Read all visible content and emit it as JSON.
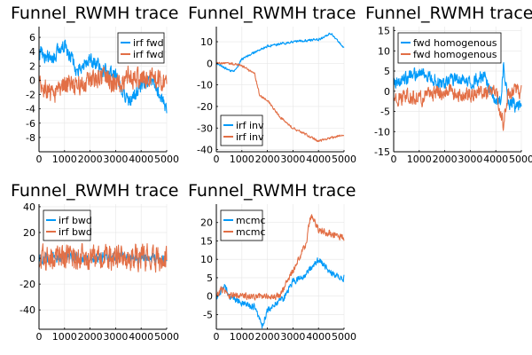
{
  "figure": {
    "title": "Funnel_RWMH trace"
  },
  "colors": {
    "series1": "#009af9",
    "series2": "#e26f46",
    "grid": "#e6e6e6",
    "axis": "#000000"
  },
  "chart_data": [
    {
      "type": "line",
      "title": "Funnel_RWMH trace",
      "xlim": [
        0,
        5000
      ],
      "ylim": [
        -10,
        7.5
      ],
      "xticks": [
        0,
        1000,
        2000,
        3000,
        4000,
        5000
      ],
      "yticks": [
        -8,
        -6,
        -4,
        -2,
        0,
        2,
        4,
        6
      ],
      "grid": true,
      "legend_position": "top-right",
      "series": [
        {
          "name": "irf fwd",
          "color": "#009af9",
          "volatility": 0.9,
          "x": [
            0,
            500,
            1000,
            1500,
            2000,
            2500,
            3000,
            3500,
            4000,
            4500,
            5000
          ],
          "y": [
            4,
            3,
            5,
            1.5,
            3,
            1.5,
            1,
            -3,
            -1,
            0,
            -4
          ]
        },
        {
          "name": "irf fwd",
          "color": "#e26f46",
          "volatility": 1.3,
          "x": [
            0,
            500,
            1000,
            1500,
            2000,
            2500,
            3000,
            3500,
            4000,
            4500,
            5000
          ],
          "y": [
            -1,
            -2,
            -0.5,
            -1,
            0,
            0.5,
            -0.5,
            0.5,
            0,
            0,
            0
          ]
        }
      ]
    },
    {
      "type": "line",
      "title": "Funnel_RWMH trace",
      "xlim": [
        0,
        5000
      ],
      "ylim": [
        -41,
        17
      ],
      "xticks": [
        0,
        1000,
        2000,
        3000,
        4000,
        5000
      ],
      "yticks": [
        -40,
        -30,
        -20,
        -10,
        0,
        10
      ],
      "grid": true,
      "legend_position": "bottom-left",
      "series": [
        {
          "name": "irf inv",
          "color": "#009af9",
          "volatility": 0.5,
          "x": [
            0,
            300,
            700,
            1000,
            1500,
            2000,
            3000,
            4000,
            4500,
            5000
          ],
          "y": [
            0,
            -2,
            -4,
            2,
            5,
            8,
            10,
            11,
            14,
            7
          ]
        },
        {
          "name": "irf inv",
          "color": "#e26f46",
          "volatility": 0.5,
          "x": [
            0,
            500,
            1000,
            1500,
            1700,
            2000,
            2500,
            3000,
            4000,
            5000
          ],
          "y": [
            0,
            0,
            -1,
            -5,
            -15,
            -17,
            -25,
            -30,
            -36,
            -33
          ]
        }
      ]
    },
    {
      "type": "line",
      "title": "Funnel_RWMH trace",
      "xlim": [
        0,
        5000
      ],
      "ylim": [
        -15,
        16
      ],
      "xticks": [
        0,
        1000,
        2000,
        3000,
        4000,
        5000
      ],
      "yticks": [
        -15,
        -10,
        -5,
        0,
        5,
        10,
        15
      ],
      "grid": true,
      "legend_position": "top-right",
      "series": [
        {
          "name": "fwd homogenous",
          "color": "#009af9",
          "volatility": 1.5,
          "x": [
            0,
            500,
            1000,
            1500,
            2000,
            2500,
            3000,
            3500,
            4000,
            4200,
            4300,
            4500,
            5000
          ],
          "y": [
            2,
            3,
            5,
            3,
            2,
            3,
            2,
            4,
            -3,
            -2,
            6,
            -3,
            -4
          ]
        },
        {
          "name": "fwd homogenous",
          "color": "#e26f46",
          "volatility": 1.7,
          "x": [
            0,
            500,
            1000,
            1500,
            2000,
            2500,
            3000,
            3500,
            4000,
            4300,
            4500,
            5000
          ],
          "y": [
            -2,
            -1,
            -2,
            -1,
            0,
            -1,
            -1,
            0,
            0,
            -8,
            0,
            0
          ]
        }
      ]
    },
    {
      "type": "line",
      "title": "Funnel_RWMH trace",
      "xlim": [
        0,
        5000
      ],
      "ylim": [
        -55,
        42
      ],
      "xticks": [
        0,
        1000,
        2000,
        3000,
        4000,
        5000
      ],
      "yticks": [
        -40,
        -20,
        0,
        20,
        40
      ],
      "grid": true,
      "legend_position": "top-left",
      "series": [
        {
          "name": "irf bwd",
          "color": "#009af9",
          "volatility": 3.5,
          "x": [
            0,
            1000,
            2000,
            3000,
            4000,
            5000
          ],
          "y": [
            0,
            1,
            0,
            1,
            0,
            0
          ]
        },
        {
          "name": "irf bwd",
          "color": "#e26f46",
          "volatility": 9,
          "x": [
            0,
            1000,
            2000,
            3000,
            4000,
            5000
          ],
          "y": [
            0,
            0,
            0,
            0,
            0,
            0
          ]
        }
      ]
    },
    {
      "type": "line",
      "title": "Funnel_RWMH trace",
      "xlim": [
        0,
        5000
      ],
      "ylim": [
        -9,
        25
      ],
      "xticks": [
        0,
        1000,
        2000,
        3000,
        4000,
        5000
      ],
      "yticks": [
        -5,
        0,
        5,
        10,
        15,
        20
      ],
      "grid": true,
      "legend_position": "top-left",
      "series": [
        {
          "name": "mcmc",
          "color": "#009af9",
          "volatility": 0.8,
          "x": [
            0,
            300,
            500,
            1000,
            1500,
            1800,
            2000,
            2300,
            2600,
            3000,
            3500,
            4000,
            4500,
            5000
          ],
          "y": [
            -1,
            3,
            0,
            -2,
            -3,
            -8,
            -4,
            -2,
            -1,
            4,
            6,
            10,
            6,
            5
          ]
        },
        {
          "name": "mcmc",
          "color": "#e26f46",
          "volatility": 0.8,
          "x": [
            0,
            200,
            500,
            1000,
            2000,
            2500,
            3000,
            3500,
            3700,
            4000,
            4500,
            5000
          ],
          "y": [
            0,
            2,
            0,
            0,
            0,
            0,
            7,
            14,
            22,
            18,
            17,
            16
          ]
        }
      ]
    }
  ]
}
